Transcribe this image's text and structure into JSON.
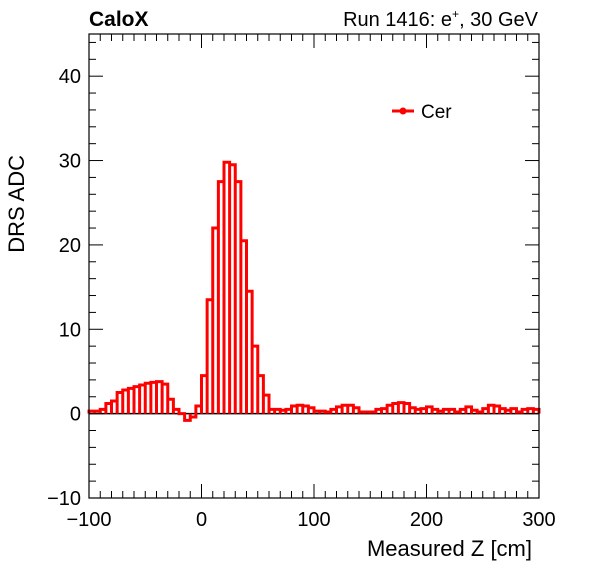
{
  "header": {
    "experiment": "CaloX",
    "run_label": "Run 1416: e",
    "run_superscript": "+",
    "run_suffix": ", 30 GeV"
  },
  "chart_data": {
    "type": "histogram-step",
    "xlabel": "Measured Z [cm]",
    "ylabel": "DRS ADC",
    "xlim": [
      -100,
      300
    ],
    "ylim": [
      -10,
      45
    ],
    "x_ticks": [
      -100,
      0,
      100,
      200,
      300
    ],
    "x_tick_labels": [
      "−100",
      "0",
      "100",
      "200",
      "300"
    ],
    "y_ticks": [
      -10,
      0,
      10,
      20,
      30,
      40
    ],
    "y_tick_labels": [
      "−10",
      "0",
      "10",
      "20",
      "30",
      "40"
    ],
    "grid": false,
    "legend_position": "top-right",
    "colors": {
      "series": "#ff0000",
      "axis": "#000000",
      "zero_line": "#000000"
    },
    "series": [
      {
        "name": "Cer",
        "bin_width": 5,
        "x_start": -100,
        "values": [
          0.3,
          0.3,
          0.5,
          1.2,
          1.5,
          2.5,
          2.8,
          3.0,
          3.2,
          3.4,
          3.6,
          3.7,
          3.8,
          3.5,
          1.7,
          0.5,
          0.0,
          -0.8,
          -0.4,
          0.9,
          4.5,
          13.5,
          22.0,
          27.5,
          29.8,
          29.5,
          27.5,
          20.5,
          14.5,
          8.0,
          4.5,
          2.2,
          0.5,
          0.5,
          0.4,
          0.5,
          0.9,
          1.0,
          0.9,
          0.7,
          0.3,
          0.3,
          0.2,
          0.5,
          0.8,
          1.0,
          1.0,
          0.7,
          0.2,
          0.2,
          0.2,
          0.5,
          0.6,
          1.0,
          1.2,
          1.3,
          1.2,
          0.7,
          0.5,
          0.6,
          0.8,
          0.5,
          0.3,
          0.5,
          0.5,
          0.2,
          0.5,
          0.8,
          0.4,
          0.2,
          0.6,
          1.0,
          0.9,
          0.6,
          0.4,
          0.6,
          0.2,
          0.5,
          0.6,
          0.5
        ]
      }
    ]
  }
}
